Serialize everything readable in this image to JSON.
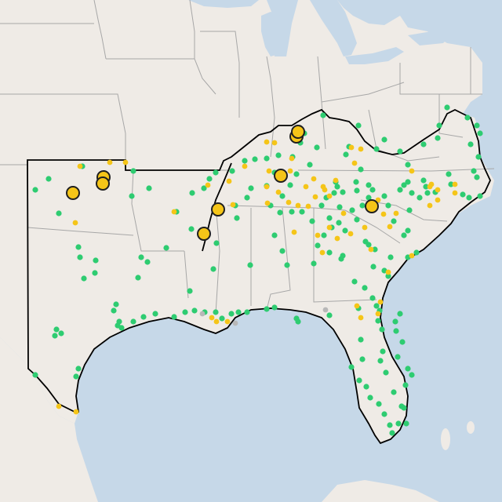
{
  "map": {
    "colors": {
      "land": "#efebe6",
      "water": "#c6d8e8",
      "state_border": "#a7a7a7",
      "region_outline": "#000000",
      "marker_green": "#2ecc71",
      "marker_yellow": "#f5c518",
      "marker_gray": "#b8b8b8",
      "large_marker_stroke": "#1f1f1f"
    },
    "legend": "none",
    "markers": {
      "count_green": 210,
      "count_yellow": 62,
      "count_gray": 3,
      "count_large_yellow": 9
    }
  }
}
